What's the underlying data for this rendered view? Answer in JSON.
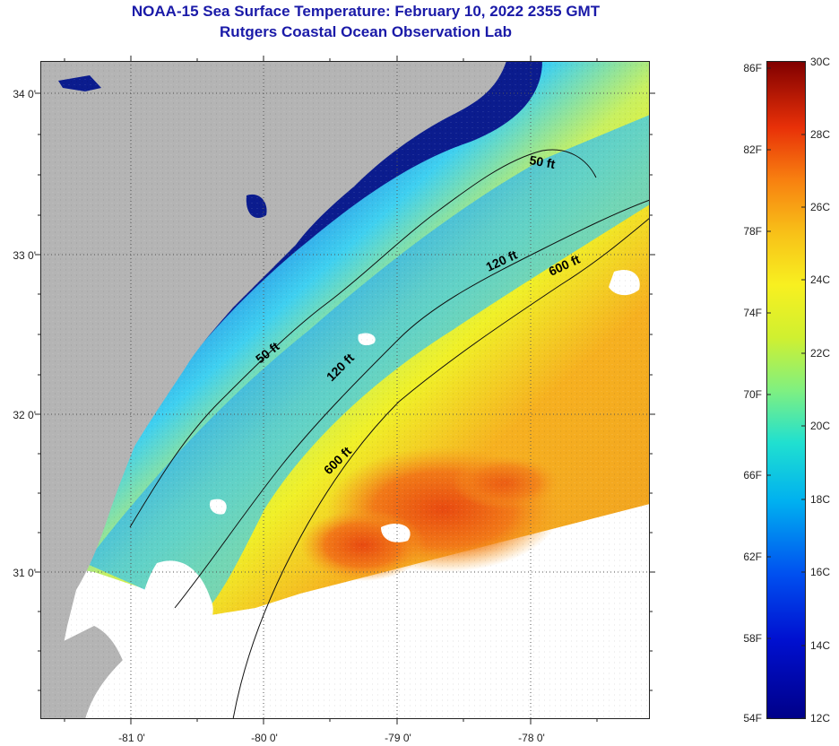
{
  "title": {
    "line1": "NOAA-15 Sea Surface Temperature:  February 10, 2022 2355 GMT",
    "line2": "Rutgers Coastal Ocean Observation Lab"
  },
  "map": {
    "latitude_labels": [
      "34 0'",
      "33 0'",
      "32 0'",
      "31 0'"
    ],
    "longitude_labels": [
      "-81 0'",
      "-80 0'",
      "-79 0'",
      "-78 0'"
    ],
    "contour_labels": {
      "c50_north": "50 ft",
      "c50_mid": "50 ft",
      "c120_north": "120 ft",
      "c120_mid": "120 ft",
      "c600_north": "600 ft",
      "c600_south": "600 ft"
    },
    "colors": {
      "land": "#b4b4b4",
      "cloud": "#ffffff",
      "cold": "#0a1a8c",
      "warm": "#f5a020"
    }
  },
  "colorbar": {
    "fahrenheit_labels": [
      "86F",
      "82F",
      "78F",
      "74F",
      "70F",
      "66F",
      "62F",
      "58F",
      "54F"
    ],
    "celsius_labels": [
      "30C",
      "28C",
      "26C",
      "24C",
      "22C",
      "20C",
      "18C",
      "16C",
      "14C",
      "12C"
    ],
    "range_c": [
      12,
      30
    ],
    "range_f": [
      54,
      86
    ]
  }
}
